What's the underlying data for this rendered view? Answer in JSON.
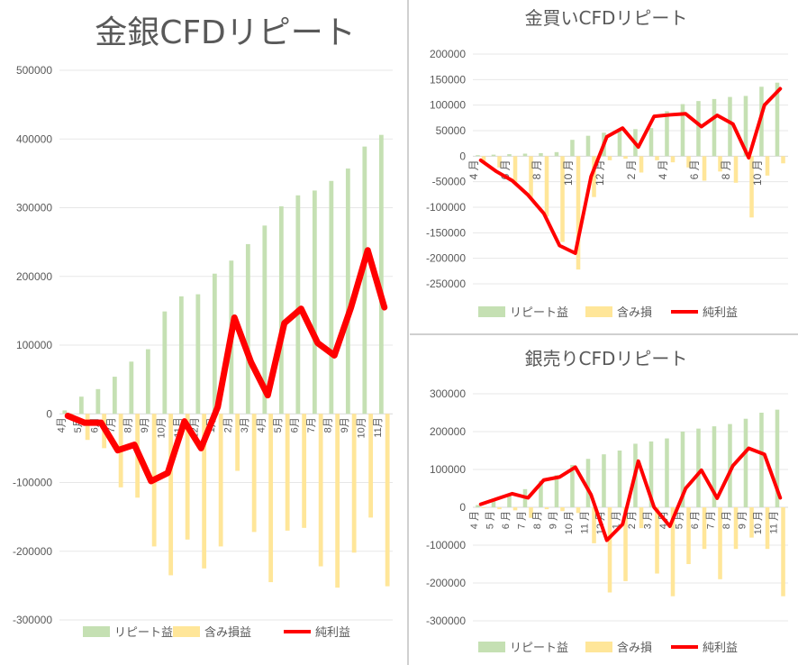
{
  "chart_data": [
    {
      "id": "left",
      "type": "bar",
      "title": "金銀CFDリピート",
      "categories": [
        "4月",
        "5月",
        "6月",
        "7月",
        "8月",
        "9月",
        "10月",
        "11月",
        "12月",
        "1月",
        "2月",
        "3月",
        "4月",
        "5月",
        "6月",
        "7月",
        "8月",
        "9月",
        "10月",
        "11月"
      ],
      "yticks": [
        "500000",
        "400000",
        "300000",
        "200000",
        "100000",
        "0",
        "-100000",
        "-200000",
        "-300000"
      ],
      "ylim": [
        -300000,
        500000
      ],
      "grid": true,
      "legend_position": "bottom",
      "series": [
        {
          "name": "リピート益",
          "kind": "bar",
          "color": "#c5e0b3",
          "values": [
            5000,
            25000,
            36000,
            54000,
            76000,
            94000,
            149000,
            171000,
            174000,
            204000,
            223000,
            247000,
            274000,
            302000,
            318000,
            325000,
            339000,
            357000,
            389000,
            406000
          ]
        },
        {
          "name": "含み損益",
          "kind": "bar",
          "color": "#ffe699",
          "values": [
            -7000,
            -38000,
            -50000,
            -107000,
            -122000,
            -193000,
            -235000,
            -183000,
            -225000,
            -193000,
            -83000,
            -172000,
            -245000,
            -170000,
            -166000,
            -222000,
            -253000,
            -202000,
            -151000,
            -251000
          ]
        },
        {
          "name": "純利益",
          "kind": "line",
          "color": "#ff0000",
          "values": [
            -3000,
            -13000,
            -13000,
            -53000,
            -45000,
            -98000,
            -86000,
            -11000,
            -50000,
            10000,
            140000,
            75000,
            27000,
            132000,
            153000,
            103000,
            85000,
            155000,
            238000,
            155000
          ]
        }
      ]
    },
    {
      "id": "tr",
      "type": "bar",
      "title": "金買いCFDリピート",
      "categories": [
        "4 月",
        "",
        "6 月",
        "",
        "8 月",
        "",
        "10 月",
        "",
        "12 月",
        "",
        "2 月",
        "",
        "4 月",
        "",
        "6 月",
        "",
        "8 月",
        "",
        "10 月",
        ""
      ],
      "yticks": [
        "200000",
        "150000",
        "100000",
        "50000",
        "0",
        "-50000",
        "-100000",
        "-150000",
        "-200000",
        "-250000"
      ],
      "ylim": [
        -250000,
        200000
      ],
      "grid": true,
      "legend_position": "bottom",
      "series": [
        {
          "name": "リピート益",
          "kind": "bar",
          "color": "#c5e0b3",
          "values": [
            2000,
            3000,
            4000,
            5000,
            6000,
            8000,
            32000,
            40000,
            46000,
            50000,
            53000,
            55000,
            88000,
            102000,
            108000,
            112000,
            116000,
            118000,
            136000,
            144000
          ]
        },
        {
          "name": "含み損",
          "kind": "bar",
          "color": "#ffe699",
          "values": [
            -10000,
            -22000,
            -52000,
            -80000,
            -118000,
            -168000,
            -222000,
            -80000,
            -8000,
            -5000,
            -32000,
            -8000,
            -12000,
            -22000,
            -48000,
            -30000,
            -52000,
            -120000,
            -38000,
            -14000
          ]
        },
        {
          "name": "純利益",
          "kind": "line",
          "color": "#ff0000",
          "values": [
            -8000,
            -30000,
            -48000,
            -76000,
            -112000,
            -175000,
            -190000,
            -40000,
            38000,
            55000,
            18000,
            78000,
            81000,
            83000,
            58000,
            80000,
            63000,
            -3000,
            100000,
            132000
          ]
        }
      ]
    },
    {
      "id": "br",
      "type": "bar",
      "title": "銀売りCFDリピート",
      "categories": [
        "4 月",
        "5 月",
        "6 月",
        "7 月",
        "8 月",
        "9 月",
        "10 月",
        "11 月",
        "12 月",
        "1 月",
        "2 月",
        "3 月",
        "4 月",
        "5 月",
        "6 月",
        "7 月",
        "8 月",
        "9 月",
        "10 月",
        "11 月"
      ],
      "yticks": [
        "300000",
        "200000",
        "100000",
        "0",
        "-100000",
        "-200000",
        "-300000"
      ],
      "ylim": [
        -300000,
        300000
      ],
      "grid": true,
      "legend_position": "bottom",
      "series": [
        {
          "name": "リピート益",
          "kind": "bar",
          "color": "#c5e0b3",
          "values": [
            6000,
            18000,
            30000,
            48000,
            70000,
            85000,
            112000,
            128000,
            140000,
            150000,
            168000,
            174000,
            182000,
            200000,
            208000,
            214000,
            220000,
            234000,
            250000,
            258000
          ]
        },
        {
          "name": "含み損",
          "kind": "bar",
          "color": "#ffe699",
          "values": [
            -2000,
            -5000,
            -8000,
            -28000,
            -5000,
            -10000,
            -15000,
            -95000,
            -225000,
            -195000,
            -55000,
            -175000,
            -235000,
            -150000,
            -110000,
            -190000,
            -110000,
            -80000,
            -110000,
            -235000
          ]
        },
        {
          "name": "純利益",
          "kind": "line",
          "color": "#ff0000",
          "values": [
            8000,
            22000,
            36000,
            25000,
            72000,
            80000,
            106000,
            33000,
            -87000,
            -45000,
            122000,
            0,
            -50000,
            50000,
            98000,
            24000,
            110000,
            156000,
            140000,
            25000
          ]
        }
      ]
    }
  ]
}
